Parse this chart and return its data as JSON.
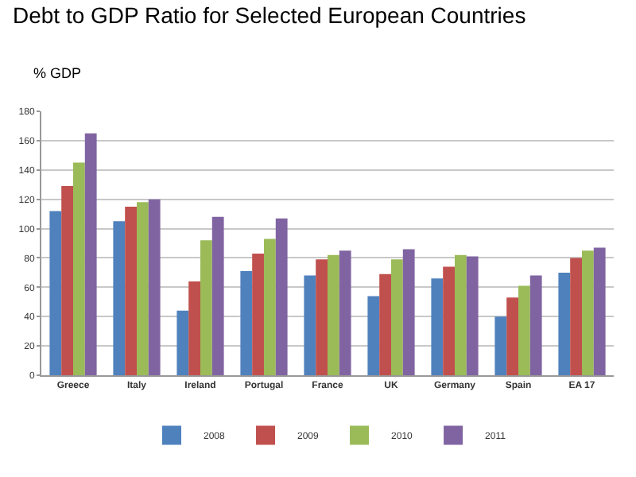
{
  "chart_data": {
    "type": "bar",
    "title": "Debt to GDP Ratio for Selected European Countries",
    "ylabel": "% GDP",
    "categories": [
      "Greece",
      "Italy",
      "Ireland",
      "Portugal",
      "France",
      "UK",
      "Germany",
      "Spain",
      "EA 17"
    ],
    "series": [
      {
        "name": "2008",
        "color": "#4f81bd",
        "values": [
          112,
          105,
          44,
          71,
          68,
          54,
          66,
          40,
          70
        ]
      },
      {
        "name": "2009",
        "color": "#c0504d",
        "values": [
          129,
          115,
          64,
          83,
          79,
          69,
          74,
          53,
          80
        ]
      },
      {
        "name": "2010",
        "color": "#9bbb59",
        "values": [
          145,
          118,
          92,
          93,
          82,
          79,
          82,
          61,
          85
        ]
      },
      {
        "name": "2011",
        "color": "#8064a2",
        "values": [
          165,
          120,
          108,
          107,
          85,
          86,
          81,
          68,
          87
        ]
      }
    ],
    "ylim": [
      0,
      180
    ],
    "yticks": [
      0,
      20,
      40,
      60,
      80,
      100,
      120,
      140,
      160,
      180
    ],
    "grid": "y",
    "legend": "bottom"
  }
}
